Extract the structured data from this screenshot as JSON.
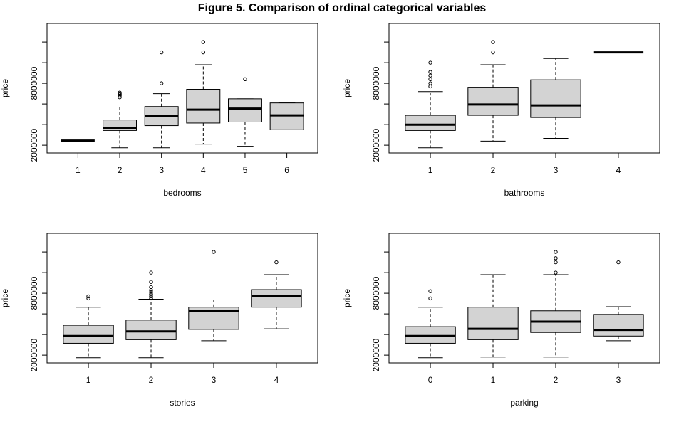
{
  "title": "Figure 5. Comparison of ordinal categorical variables",
  "chart_data": [
    {
      "type": "boxplot",
      "xlabel": "bedrooms",
      "ylabel": "price",
      "categories": [
        "1",
        "2",
        "3",
        "4",
        "5",
        "6"
      ],
      "ytick_labels": [
        "2000000",
        "8000000"
      ],
      "ylim": [
        1250000,
        13800000
      ],
      "boxes": [
        {
          "min": 2450000,
          "q1": 2450000,
          "median": 2450000,
          "q3": 2450000,
          "max": 2450000,
          "outliers": []
        },
        {
          "min": 1750000,
          "q1": 3430000,
          "median": 3700000,
          "q3": 4450000,
          "max": 5700000,
          "outliers": [
            6650000,
            6800000,
            6930000,
            7000000,
            7100000
          ]
        },
        {
          "min": 1750000,
          "q1": 3900000,
          "median": 4800000,
          "q3": 5750000,
          "max": 7000000,
          "outliers": [
            8000000,
            11000000
          ]
        },
        {
          "min": 2100000,
          "q1": 4150000,
          "median": 5450000,
          "q3": 7420000,
          "max": 9800000,
          "outliers": [
            11000000,
            12000000
          ]
        },
        {
          "min": 1900000,
          "q1": 4250000,
          "median": 5550000,
          "q3": 6500000,
          "max": 6500000,
          "outliers": [
            8400000
          ]
        },
        {
          "min": 3500000,
          "q1": 3500000,
          "median": 4900000,
          "q3": 6100000,
          "max": 6100000,
          "outliers": []
        }
      ]
    },
    {
      "type": "boxplot",
      "xlabel": "bathrooms",
      "ylabel": "price",
      "categories": [
        "1",
        "2",
        "3",
        "4"
      ],
      "ytick_labels": [
        "2000000",
        "8000000"
      ],
      "ylim": [
        1250000,
        13800000
      ],
      "boxes": [
        {
          "min": 1750000,
          "q1": 3430000,
          "median": 3990000,
          "q3": 4900000,
          "max": 7200000,
          "outliers": [
            7700000,
            8000000,
            8400000,
            8750000,
            9100000,
            10000000
          ]
        },
        {
          "min": 2400000,
          "q1": 4900000,
          "median": 5950000,
          "q3": 7620000,
          "max": 9800000,
          "outliers": [
            11000000,
            12000000
          ]
        },
        {
          "min": 2660000,
          "q1": 4690000,
          "median": 5860000,
          "q3": 8340000,
          "max": 10400000,
          "outliers": []
        },
        {
          "min": 11000000,
          "q1": 11000000,
          "median": 11000000,
          "q3": 11000000,
          "max": 11000000,
          "outliers": []
        }
      ]
    },
    {
      "type": "boxplot",
      "xlabel": "stories",
      "ylabel": "price",
      "categories": [
        "1",
        "2",
        "3",
        "4"
      ],
      "ytick_labels": [
        "2000000",
        "8000000"
      ],
      "ylim": [
        1250000,
        13800000
      ],
      "boxes": [
        {
          "min": 1750000,
          "q1": 3150000,
          "median": 3850000,
          "q3": 4900000,
          "max": 6650000,
          "outliers": [
            7500000,
            7700000
          ]
        },
        {
          "min": 1750000,
          "q1": 3500000,
          "median": 4300000,
          "q3": 5400000,
          "max": 7420000,
          "outliers": [
            7500000,
            7700000,
            7900000,
            8100000,
            8300000,
            8600000,
            9100000,
            10000000
          ]
        },
        {
          "min": 3400000,
          "q1": 4500000,
          "median": 6300000,
          "q3": 6650000,
          "max": 7350000,
          "outliers": [
            12000000
          ]
        },
        {
          "min": 4550000,
          "q1": 6650000,
          "median": 7700000,
          "q3": 8350000,
          "max": 9800000,
          "outliers": [
            11000000
          ]
        }
      ]
    },
    {
      "type": "boxplot",
      "xlabel": "parking",
      "ylabel": "price",
      "categories": [
        "0",
        "1",
        "2",
        "3"
      ],
      "ytick_labels": [
        "2000000",
        "8000000"
      ],
      "ylim": [
        1250000,
        13800000
      ],
      "boxes": [
        {
          "min": 1750000,
          "q1": 3150000,
          "median": 3850000,
          "q3": 4760000,
          "max": 6650000,
          "outliers": [
            7500000,
            8200000
          ]
        },
        {
          "min": 1820000,
          "q1": 3500000,
          "median": 4550000,
          "q3": 6650000,
          "max": 9800000,
          "outliers": []
        },
        {
          "min": 1820000,
          "q1": 4200000,
          "median": 5250000,
          "q3": 6300000,
          "max": 9800000,
          "outliers": [
            10000000,
            11000000,
            11400000,
            12000000
          ]
        },
        {
          "min": 3400000,
          "q1": 3850000,
          "median": 4450000,
          "q3": 5950000,
          "max": 6700000,
          "outliers": [
            11000000
          ]
        }
      ]
    }
  ]
}
